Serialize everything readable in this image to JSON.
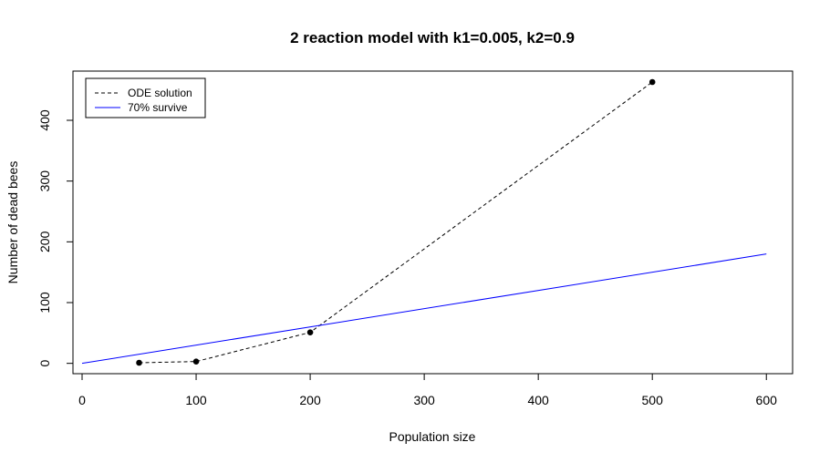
{
  "chart_data": {
    "type": "line",
    "title": "2 reaction model with k1=0.005, k2=0.9",
    "xlabel": "Population size",
    "ylabel": "Number of dead bees",
    "xlim": [
      -8,
      623
    ],
    "ylim": [
      -17,
      481
    ],
    "x_ticks": [
      0,
      100,
      200,
      300,
      400,
      500,
      600
    ],
    "y_ticks": [
      0,
      100,
      200,
      300,
      400
    ],
    "grid": false,
    "legend_position": "top-left",
    "series": [
      {
        "name": "ODE solution",
        "style": "dashed",
        "color": "#000000",
        "markers": true,
        "x": [
          50,
          100,
          200,
          500
        ],
        "y": [
          1,
          3,
          51,
          463
        ]
      },
      {
        "name": "70% survive",
        "style": "solid",
        "color": "#0000ff",
        "markers": false,
        "x": [
          0,
          600
        ],
        "y": [
          0,
          180
        ]
      }
    ]
  }
}
